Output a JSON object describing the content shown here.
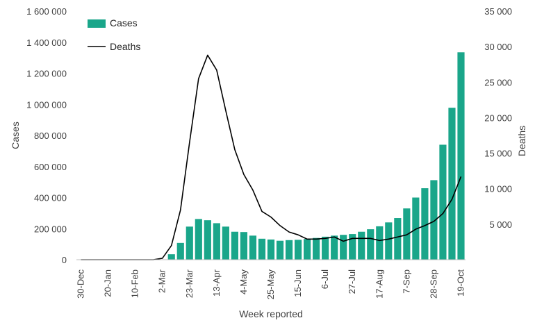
{
  "chart_data": {
    "type": "bar",
    "x_label": "Week reported",
    "y_left_label": "Cases",
    "y_right_label": "Deaths",
    "y_left_range": [
      0,
      1600000
    ],
    "y_right_range": [
      0,
      35000
    ],
    "y_left_ticks": [
      "0",
      "200 000",
      "400 000",
      "600 000",
      "800 000",
      "1 000 000",
      "1 200 000",
      "1 400 000",
      "1 600 000"
    ],
    "y_right_ticks": [
      "5 000",
      "10 000",
      "15 000",
      "20 000",
      "25 000",
      "30 000",
      "35 000"
    ],
    "x_ticks": [
      {
        "week": 0,
        "label": "30-Dec"
      },
      {
        "week": 3,
        "label": "20-Jan"
      },
      {
        "week": 6,
        "label": "10-Feb"
      },
      {
        "week": 9,
        "label": "2-Mar"
      },
      {
        "week": 12,
        "label": "23-Mar"
      },
      {
        "week": 15,
        "label": "13-Apr"
      },
      {
        "week": 18,
        "label": "4-May"
      },
      {
        "week": 21,
        "label": "25-May"
      },
      {
        "week": 24,
        "label": "15-Jun"
      },
      {
        "week": 27,
        "label": "6-Jul"
      },
      {
        "week": 30,
        "label": "27-Jul"
      },
      {
        "week": 33,
        "label": "17-Aug"
      },
      {
        "week": 36,
        "label": "7-Sep"
      },
      {
        "week": 39,
        "label": "28-Sep"
      },
      {
        "week": 42,
        "label": "19-Oct"
      }
    ],
    "legend": {
      "position": "top-left"
    },
    "grid": false,
    "series": [
      {
        "name": "Cases",
        "type": "bar",
        "axis": "left",
        "color": "#1aa68a",
        "values": [
          0,
          0,
          0,
          0,
          0,
          0,
          0,
          0,
          0,
          2000,
          35000,
          108000,
          213000,
          262000,
          254000,
          235000,
          213000,
          180000,
          178000,
          155000,
          135000,
          130000,
          122000,
          126000,
          128000,
          133000,
          140000,
          148000,
          155000,
          160000,
          165000,
          180000,
          196000,
          215000,
          240000,
          268000,
          330000,
          400000,
          460000,
          512000,
          740000,
          978000,
          1335000
        ]
      },
      {
        "name": "Deaths",
        "type": "line",
        "axis": "right",
        "color": "#000000",
        "values": [
          0,
          0,
          0,
          0,
          0,
          0,
          0,
          0,
          0,
          200,
          2000,
          7000,
          16500,
          25500,
          28800,
          26700,
          21000,
          15500,
          12000,
          9800,
          6800,
          6000,
          4800,
          3900,
          3500,
          2900,
          2900,
          3000,
          3200,
          2600,
          3000,
          3000,
          3000,
          2700,
          2900,
          3200,
          3500,
          4300,
          4800,
          5400,
          6500,
          8500,
          11700
        ]
      }
    ]
  }
}
